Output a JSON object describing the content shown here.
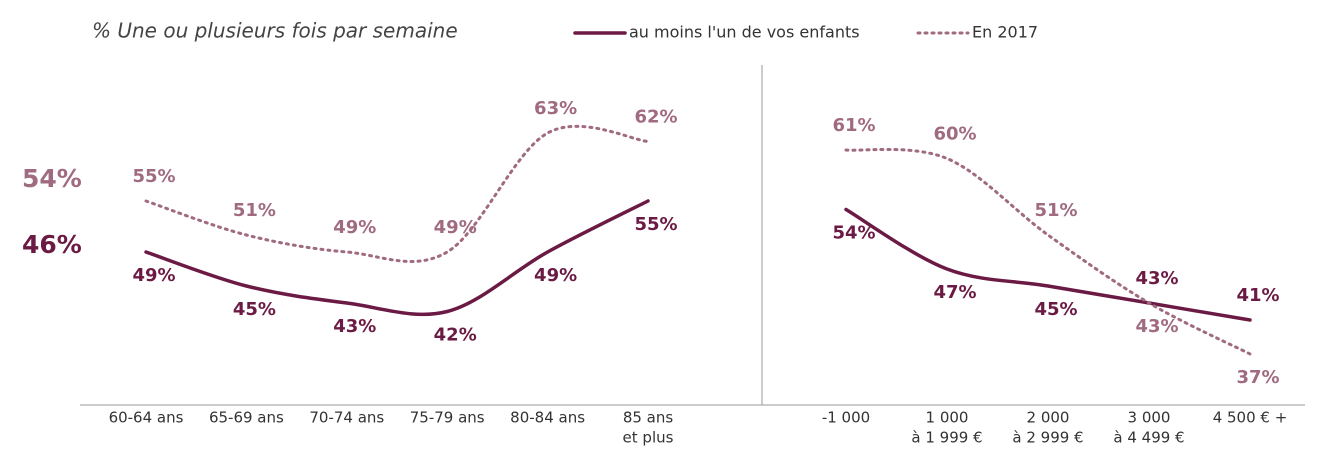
{
  "chart_data": [
    {
      "type": "line",
      "title": "% Une ou plusieurs fois par semaine",
      "annotations": [
        "54%",
        "46%"
      ],
      "categories": [
        "60-64 ans",
        "65-69 ans",
        "70-74 ans",
        "75-79 ans",
        "80-84 ans",
        [
          "85 ans",
          "et plus"
        ]
      ],
      "series": [
        {
          "name": "au moins l'un de vos enfants",
          "color": "#6b1a44",
          "style": "solid",
          "values": [
            49,
            45,
            43,
            42,
            49,
            55
          ],
          "value_labels": [
            "49%",
            "45%",
            "43%",
            "42%",
            "49%",
            "55%"
          ]
        },
        {
          "name": "En 2017",
          "color": "#a06a80",
          "style": "dotted",
          "values": [
            55,
            51,
            49,
            49,
            63,
            62
          ],
          "value_labels": [
            "55%",
            "51%",
            "49%",
            "49%",
            "63%",
            "62%"
          ]
        }
      ]
    },
    {
      "type": "line",
      "categories": [
        "-1 000",
        [
          "1 000",
          "à 1 999 €"
        ],
        [
          "2 000",
          "à 2 999 €"
        ],
        [
          "3 000",
          "à 4 499 €"
        ],
        "4 500 € +"
      ],
      "series": [
        {
          "color": "#6b1a44",
          "style": "solid",
          "values": [
            54,
            47,
            45,
            43,
            41
          ],
          "value_labels": [
            "54%",
            "47%",
            "45%",
            "43%",
            "41%"
          ]
        },
        {
          "color": "#a06a80",
          "style": "dotted",
          "values": [
            61,
            60,
            51,
            43,
            37
          ],
          "value_labels": [
            "61%",
            "60%",
            "51%",
            "43%",
            "37%"
          ]
        }
      ]
    }
  ]
}
